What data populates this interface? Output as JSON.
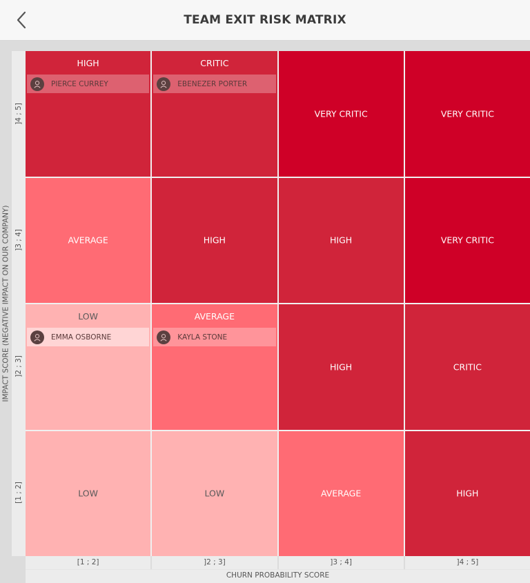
{
  "header": {
    "title": "TEAM EXIT RISK MATRIX",
    "back_icon": "chevron-left-icon"
  },
  "axes": {
    "y_title": "IMPACT SCORE (NEGATIVE IMPACT ON OUR COMPANY)",
    "y_ticks": [
      "]4 ; 5]",
      "]3 ; 4]",
      "]2 ; 3]",
      "[1 ; 2]"
    ],
    "x_title": "CHURN PROBABILITY SCORE",
    "x_ticks": [
      "[1 ; 2]",
      "]2 ; 3]",
      "]3 ; 4]",
      "]4 ; 5]"
    ]
  },
  "colors": {
    "very_critic": "#cf0027",
    "critic": "#d0243a",
    "high": "#d0243a",
    "average": "#ff6b74",
    "low": "#ffb2b2"
  },
  "matrix": {
    "rows": [
      {
        "cells": [
          {
            "label": "HIGH",
            "level": "high",
            "person": "PIERCE CURREY"
          },
          {
            "label": "CRITIC",
            "level": "critic",
            "person": "EBENEZER PORTER"
          },
          {
            "label": "VERY CRITIC",
            "level": "very_critic"
          },
          {
            "label": "VERY CRITIC",
            "level": "very_critic"
          }
        ]
      },
      {
        "cells": [
          {
            "label": "AVERAGE",
            "level": "average"
          },
          {
            "label": "HIGH",
            "level": "high"
          },
          {
            "label": "HIGH",
            "level": "high"
          },
          {
            "label": "VERY CRITIC",
            "level": "very_critic"
          }
        ]
      },
      {
        "cells": [
          {
            "label": "LOW",
            "level": "low",
            "person": "EMMA OSBORNE"
          },
          {
            "label": "AVERAGE",
            "level": "average",
            "person": "KAYLA STONE"
          },
          {
            "label": "HIGH",
            "level": "high"
          },
          {
            "label": "CRITIC",
            "level": "critic"
          }
        ]
      },
      {
        "cells": [
          {
            "label": "LOW",
            "level": "low"
          },
          {
            "label": "LOW",
            "level": "low"
          },
          {
            "label": "AVERAGE",
            "level": "average"
          },
          {
            "label": "HIGH",
            "level": "high"
          }
        ]
      }
    ]
  }
}
